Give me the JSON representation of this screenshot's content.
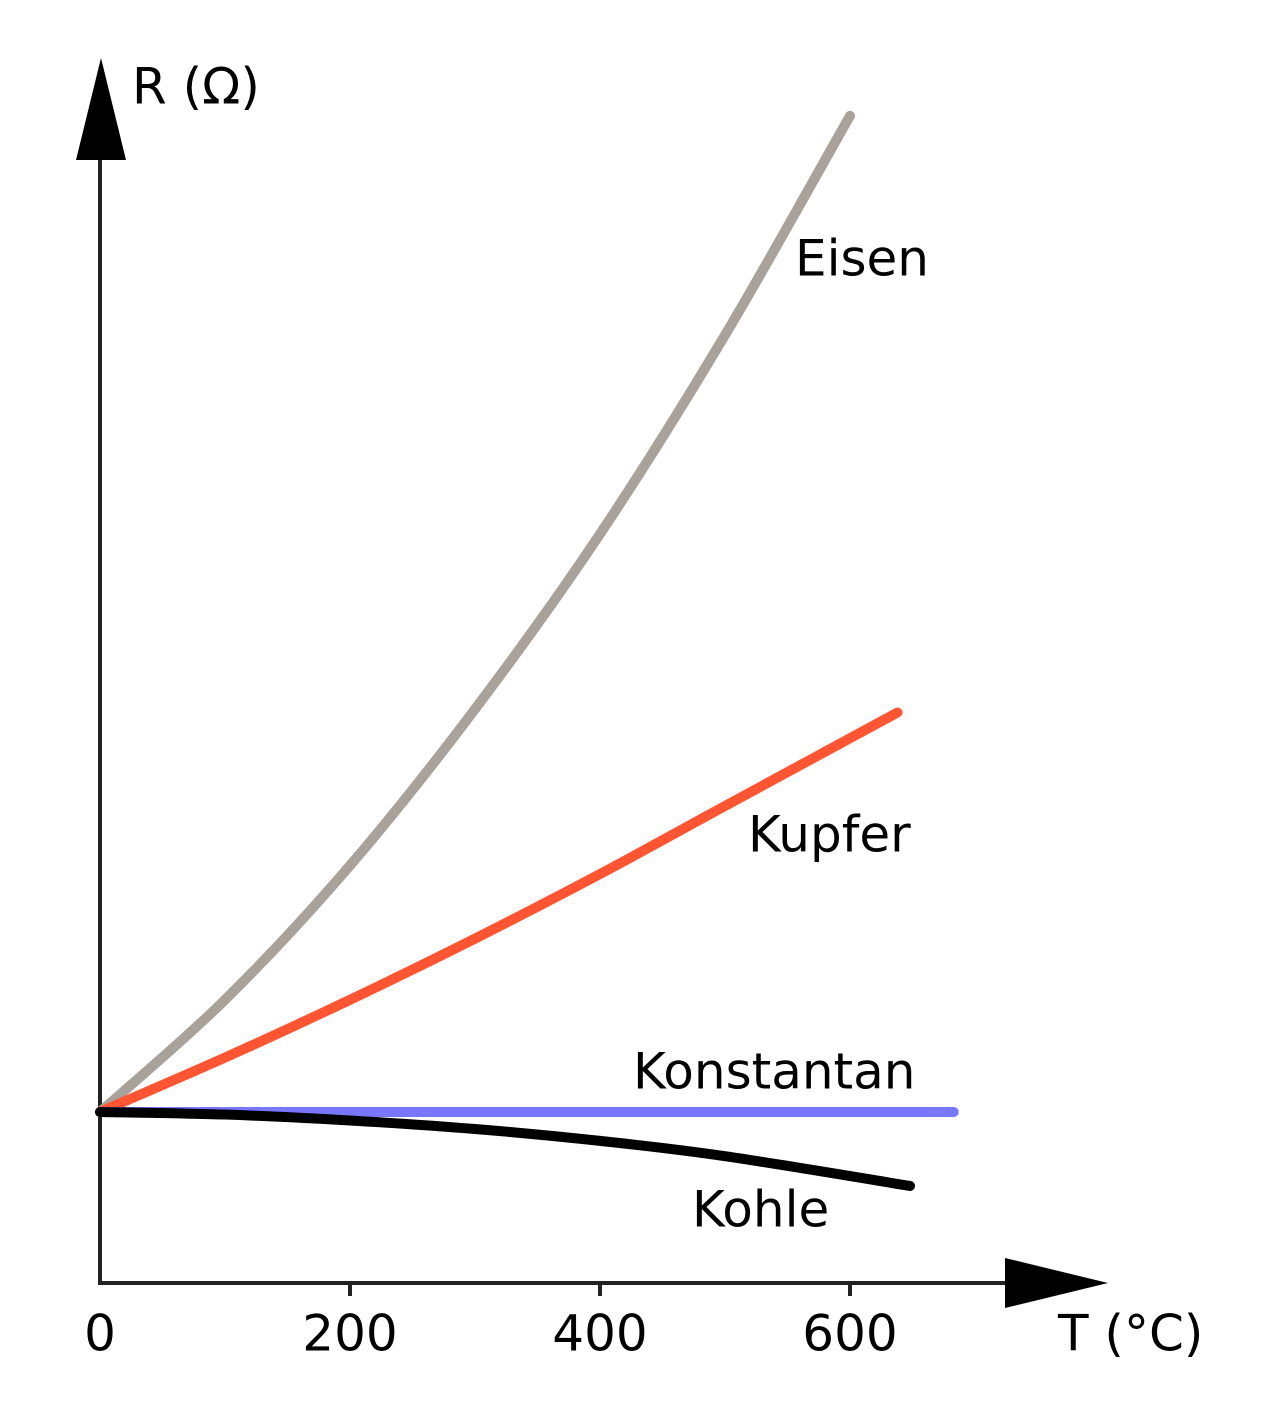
{
  "chart_data": {
    "type": "line",
    "x_label": "T (°C)",
    "y_label": "R (Ω)",
    "xlim": [
      0,
      800
    ],
    "ylim": [
      0,
      7.2
    ],
    "xticks": [
      0,
      200,
      400,
      600
    ],
    "series": [
      {
        "name": "Eisen",
        "color": "#a8a29a",
        "x": [
          0,
          100,
          200,
          300,
          400,
          500,
          600
        ],
        "values": [
          1,
          1.66,
          2.45,
          3.37,
          4.4,
          5.57,
          6.86
        ]
      },
      {
        "name": "Kupfer",
        "color": "#ff5533",
        "x": [
          0,
          100,
          200,
          300,
          400,
          500,
          638
        ],
        "values": [
          1,
          1.32,
          1.66,
          2.02,
          2.4,
          2.8,
          3.35
        ]
      },
      {
        "name": "Konstantan",
        "color": "#7777ff",
        "x": [
          0,
          683
        ],
        "values": [
          1,
          1
        ]
      },
      {
        "name": "Kohle",
        "color": "#000000",
        "x": [
          0,
          100,
          200,
          300,
          400,
          500,
          648
        ],
        "values": [
          1,
          0.985,
          0.95,
          0.9,
          0.83,
          0.74,
          0.565
        ]
      }
    ]
  }
}
